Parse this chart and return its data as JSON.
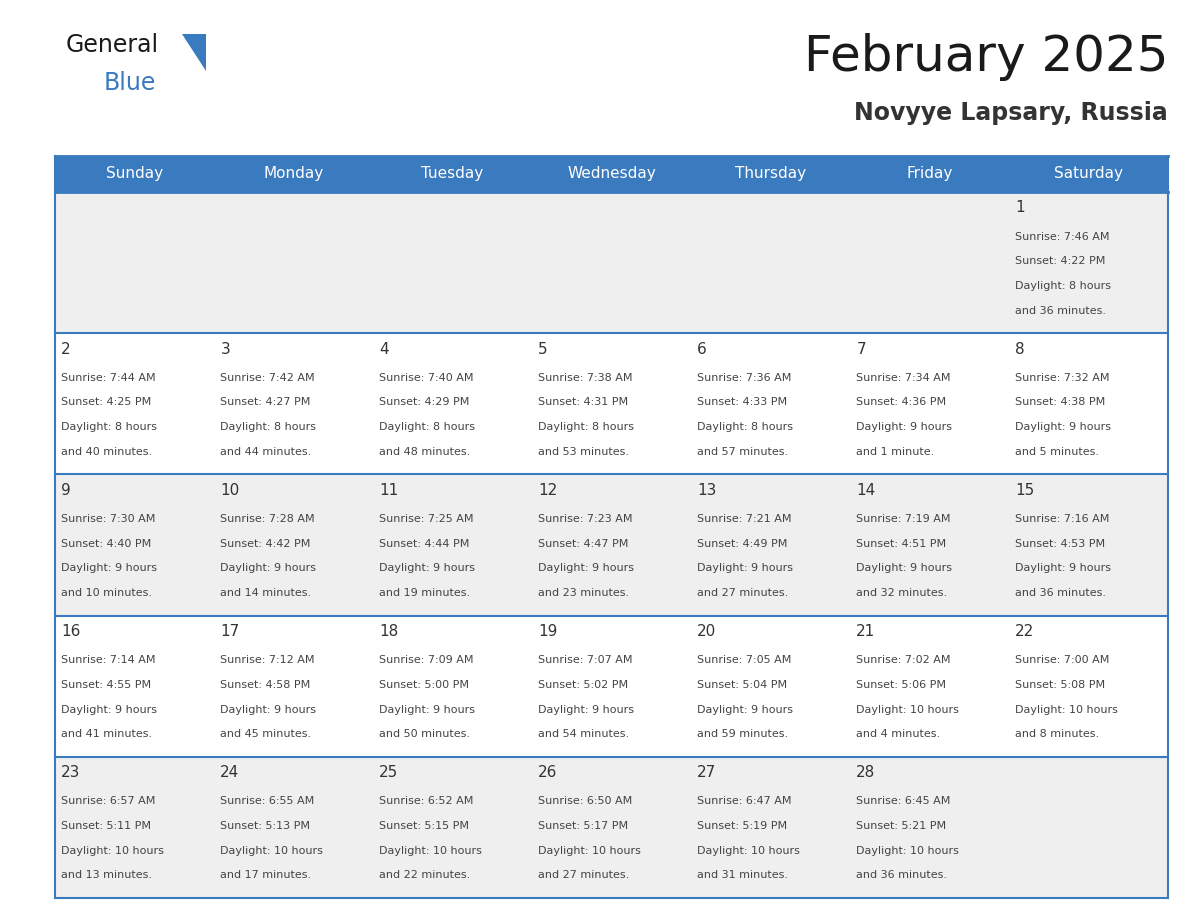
{
  "title": "February 2025",
  "subtitle": "Novyye Lapsary, Russia",
  "header_bg": "#3a7abf",
  "header_text": "#ffffff",
  "day_names": [
    "Sunday",
    "Monday",
    "Tuesday",
    "Wednesday",
    "Thursday",
    "Friday",
    "Saturday"
  ],
  "row_bg_light": "#efefef",
  "row_bg_white": "#ffffff",
  "cell_border": "#3a7abf",
  "number_color": "#333333",
  "info_color": "#444444",
  "days": [
    {
      "day": 1,
      "col": 6,
      "row": 0,
      "sunrise": "7:46 AM",
      "sunset": "4:22 PM",
      "daylight": "8 hours and 36 minutes"
    },
    {
      "day": 2,
      "col": 0,
      "row": 1,
      "sunrise": "7:44 AM",
      "sunset": "4:25 PM",
      "daylight": "8 hours and 40 minutes"
    },
    {
      "day": 3,
      "col": 1,
      "row": 1,
      "sunrise": "7:42 AM",
      "sunset": "4:27 PM",
      "daylight": "8 hours and 44 minutes"
    },
    {
      "day": 4,
      "col": 2,
      "row": 1,
      "sunrise": "7:40 AM",
      "sunset": "4:29 PM",
      "daylight": "8 hours and 48 minutes"
    },
    {
      "day": 5,
      "col": 3,
      "row": 1,
      "sunrise": "7:38 AM",
      "sunset": "4:31 PM",
      "daylight": "8 hours and 53 minutes"
    },
    {
      "day": 6,
      "col": 4,
      "row": 1,
      "sunrise": "7:36 AM",
      "sunset": "4:33 PM",
      "daylight": "8 hours and 57 minutes"
    },
    {
      "day": 7,
      "col": 5,
      "row": 1,
      "sunrise": "7:34 AM",
      "sunset": "4:36 PM",
      "daylight": "9 hours and 1 minute"
    },
    {
      "day": 8,
      "col": 6,
      "row": 1,
      "sunrise": "7:32 AM",
      "sunset": "4:38 PM",
      "daylight": "9 hours and 5 minutes"
    },
    {
      "day": 9,
      "col": 0,
      "row": 2,
      "sunrise": "7:30 AM",
      "sunset": "4:40 PM",
      "daylight": "9 hours and 10 minutes"
    },
    {
      "day": 10,
      "col": 1,
      "row": 2,
      "sunrise": "7:28 AM",
      "sunset": "4:42 PM",
      "daylight": "9 hours and 14 minutes"
    },
    {
      "day": 11,
      "col": 2,
      "row": 2,
      "sunrise": "7:25 AM",
      "sunset": "4:44 PM",
      "daylight": "9 hours and 19 minutes"
    },
    {
      "day": 12,
      "col": 3,
      "row": 2,
      "sunrise": "7:23 AM",
      "sunset": "4:47 PM",
      "daylight": "9 hours and 23 minutes"
    },
    {
      "day": 13,
      "col": 4,
      "row": 2,
      "sunrise": "7:21 AM",
      "sunset": "4:49 PM",
      "daylight": "9 hours and 27 minutes"
    },
    {
      "day": 14,
      "col": 5,
      "row": 2,
      "sunrise": "7:19 AM",
      "sunset": "4:51 PM",
      "daylight": "9 hours and 32 minutes"
    },
    {
      "day": 15,
      "col": 6,
      "row": 2,
      "sunrise": "7:16 AM",
      "sunset": "4:53 PM",
      "daylight": "9 hours and 36 minutes"
    },
    {
      "day": 16,
      "col": 0,
      "row": 3,
      "sunrise": "7:14 AM",
      "sunset": "4:55 PM",
      "daylight": "9 hours and 41 minutes"
    },
    {
      "day": 17,
      "col": 1,
      "row": 3,
      "sunrise": "7:12 AM",
      "sunset": "4:58 PM",
      "daylight": "9 hours and 45 minutes"
    },
    {
      "day": 18,
      "col": 2,
      "row": 3,
      "sunrise": "7:09 AM",
      "sunset": "5:00 PM",
      "daylight": "9 hours and 50 minutes"
    },
    {
      "day": 19,
      "col": 3,
      "row": 3,
      "sunrise": "7:07 AM",
      "sunset": "5:02 PM",
      "daylight": "9 hours and 54 minutes"
    },
    {
      "day": 20,
      "col": 4,
      "row": 3,
      "sunrise": "7:05 AM",
      "sunset": "5:04 PM",
      "daylight": "9 hours and 59 minutes"
    },
    {
      "day": 21,
      "col": 5,
      "row": 3,
      "sunrise": "7:02 AM",
      "sunset": "5:06 PM",
      "daylight": "10 hours and 4 minutes"
    },
    {
      "day": 22,
      "col": 6,
      "row": 3,
      "sunrise": "7:00 AM",
      "sunset": "5:08 PM",
      "daylight": "10 hours and 8 minutes"
    },
    {
      "day": 23,
      "col": 0,
      "row": 4,
      "sunrise": "6:57 AM",
      "sunset": "5:11 PM",
      "daylight": "10 hours and 13 minutes"
    },
    {
      "day": 24,
      "col": 1,
      "row": 4,
      "sunrise": "6:55 AM",
      "sunset": "5:13 PM",
      "daylight": "10 hours and 17 minutes"
    },
    {
      "day": 25,
      "col": 2,
      "row": 4,
      "sunrise": "6:52 AM",
      "sunset": "5:15 PM",
      "daylight": "10 hours and 22 minutes"
    },
    {
      "day": 26,
      "col": 3,
      "row": 4,
      "sunrise": "6:50 AM",
      "sunset": "5:17 PM",
      "daylight": "10 hours and 27 minutes"
    },
    {
      "day": 27,
      "col": 4,
      "row": 4,
      "sunrise": "6:47 AM",
      "sunset": "5:19 PM",
      "daylight": "10 hours and 31 minutes"
    },
    {
      "day": 28,
      "col": 5,
      "row": 4,
      "sunrise": "6:45 AM",
      "sunset": "5:21 PM",
      "daylight": "10 hours and 36 minutes"
    }
  ],
  "num_rows": 5,
  "num_cols": 7,
  "logo_general_color": "#1a1a1a",
  "logo_blue_color": "#3a7abf",
  "logo_triangle_color": "#3a7abf"
}
